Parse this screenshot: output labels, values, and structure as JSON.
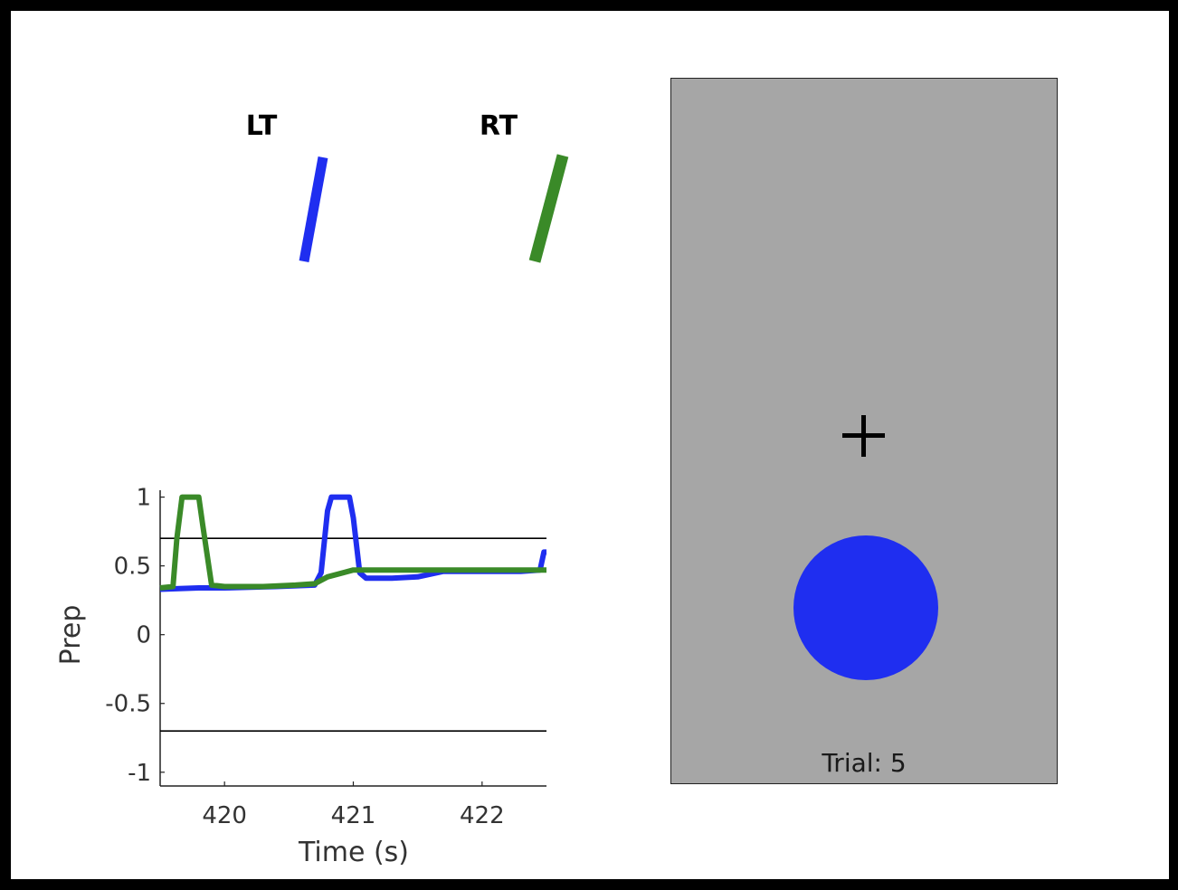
{
  "effectors": {
    "left_label": "LT",
    "right_label": "RT",
    "left_color": "#1f2ef0",
    "right_color": "#3a8a28"
  },
  "task": {
    "trial_prefix": "Trial:",
    "trial_number": "5",
    "trial_text": "Trial: 5",
    "fixation_symbol": "+",
    "panel_color": "#a6a6a6",
    "target_color": "#1f2ef0"
  },
  "chart_data": {
    "type": "line",
    "title": "",
    "xlabel": "Time (s)",
    "ylabel": "Prep",
    "xlim": [
      419.5,
      422.5
    ],
    "ylim": [
      -1.1,
      1.05
    ],
    "xticks": [
      420,
      421,
      422
    ],
    "xtick_labels": [
      "420",
      "421",
      "422"
    ],
    "yticks": [
      1,
      0.5,
      0,
      -0.5,
      -1
    ],
    "ytick_labels": [
      "1",
      "0.5",
      "0",
      "-0.5",
      "-1"
    ],
    "thresholds": [
      0.7,
      -0.7
    ],
    "threshold_color": "#000000",
    "grid": false,
    "series": [
      {
        "color": "#1f2ef0",
        "x": [
          419.5,
          419.8,
          420.0,
          420.4,
          420.7,
          420.75,
          420.8,
          420.83,
          420.97,
          421.0,
          421.05,
          421.1,
          421.3,
          421.5,
          421.7,
          422.0,
          422.3,
          422.45,
          422.48,
          422.5
        ],
        "y": [
          0.33,
          0.34,
          0.34,
          0.35,
          0.36,
          0.45,
          0.9,
          1.0,
          1.0,
          0.85,
          0.45,
          0.41,
          0.41,
          0.42,
          0.46,
          0.46,
          0.46,
          0.47,
          0.6,
          0.6
        ]
      },
      {
        "color": "#3a8a28",
        "x": [
          419.5,
          419.6,
          419.63,
          419.67,
          419.8,
          419.83,
          419.9,
          420.0,
          420.3,
          420.55,
          420.7,
          420.8,
          421.0,
          421.3,
          421.6,
          422.0,
          422.3,
          422.5
        ],
        "y": [
          0.34,
          0.35,
          0.7,
          1.0,
          1.0,
          0.8,
          0.36,
          0.35,
          0.35,
          0.36,
          0.37,
          0.42,
          0.47,
          0.47,
          0.47,
          0.47,
          0.47,
          0.47
        ]
      }
    ]
  }
}
